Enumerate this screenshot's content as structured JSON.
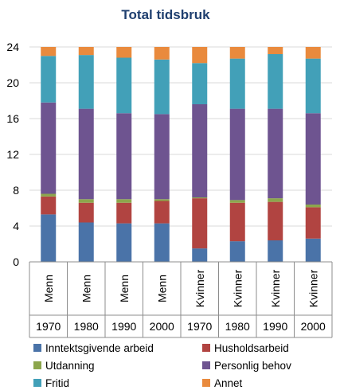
{
  "chart_data": {
    "type": "bar",
    "stacked": true,
    "title": "Total tidsbruk",
    "xlabel": "",
    "ylabel": "",
    "ylim": [
      0,
      24
    ],
    "yticks": [
      0,
      4,
      8,
      12,
      16,
      20,
      24
    ],
    "grid": true,
    "legend_position": "bottom",
    "categories": [
      {
        "group": "Menn",
        "year": "1970"
      },
      {
        "group": "Menn",
        "year": "1980"
      },
      {
        "group": "Menn",
        "year": "1990"
      },
      {
        "group": "Menn",
        "year": "2000"
      },
      {
        "group": "Kvinner",
        "year": "1970"
      },
      {
        "group": "Kvinner",
        "year": "1980"
      },
      {
        "group": "Kvinner",
        "year": "1990"
      },
      {
        "group": "Kvinner",
        "year": "2000"
      }
    ],
    "series": [
      {
        "name": "Inntektsgivende arbeid",
        "color": "#4a73a8",
        "values": [
          5.3,
          4.4,
          4.3,
          4.3,
          1.5,
          2.3,
          2.4,
          2.6
        ]
      },
      {
        "name": "Husholdsarbeid",
        "color": "#b14441",
        "values": [
          2.0,
          2.2,
          2.3,
          2.5,
          5.6,
          4.3,
          4.3,
          3.5
        ]
      },
      {
        "name": "Utdanning",
        "color": "#8ca64c",
        "values": [
          0.3,
          0.4,
          0.4,
          0.2,
          0.1,
          0.3,
          0.4,
          0.3
        ]
      },
      {
        "name": "Personlig behov",
        "color": "#6e5490",
        "values": [
          10.2,
          10.1,
          9.6,
          9.5,
          10.4,
          10.2,
          10.0,
          10.2
        ]
      },
      {
        "name": "Fritid",
        "color": "#42a0b8",
        "values": [
          5.2,
          6.0,
          6.2,
          6.1,
          4.6,
          5.6,
          6.1,
          6.1
        ]
      },
      {
        "name": "Annet",
        "color": "#e98a3d",
        "values": [
          1.0,
          0.9,
          1.2,
          1.4,
          1.8,
          1.3,
          0.8,
          1.3
        ]
      }
    ]
  }
}
